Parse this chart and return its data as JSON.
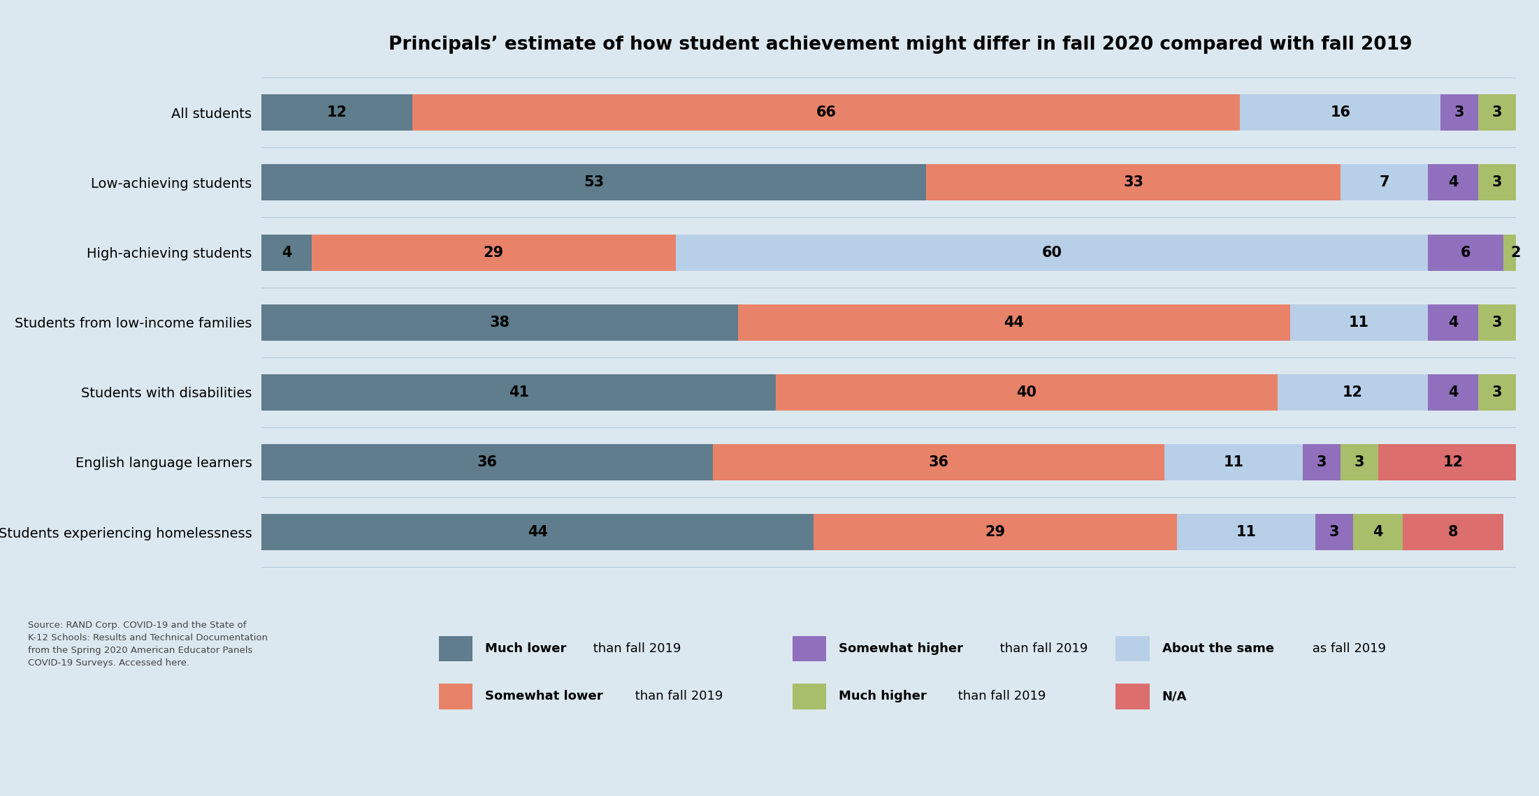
{
  "title": "Principals’ estimate of how student achievement might differ in fall 2020 compared with fall 2019",
  "categories": [
    "All students",
    "Low-achieving students",
    "High-achieving students",
    "Students from low-income families",
    "Students with disabilities",
    "English language learners",
    "Students experiencing homelessness"
  ],
  "segments": {
    "much_lower": [
      12,
      53,
      4,
      38,
      41,
      36,
      44
    ],
    "somewhat_lower": [
      66,
      33,
      29,
      44,
      40,
      36,
      29
    ],
    "about_same": [
      16,
      7,
      60,
      11,
      12,
      11,
      11
    ],
    "somewhat_higher": [
      3,
      4,
      6,
      4,
      4,
      3,
      3
    ],
    "much_higher": [
      3,
      3,
      2,
      3,
      3,
      3,
      4
    ],
    "na": [
      0,
      0,
      0,
      0,
      0,
      12,
      8
    ]
  },
  "colors": {
    "much_lower": "#5f7d8c",
    "somewhat_lower": "#e8836a",
    "about_same": "#b8cfe8",
    "somewhat_higher": "#9070bc",
    "much_higher": "#a8be6a",
    "na": "#dc6e6e"
  },
  "legend_labels": {
    "much_lower": "Much lower",
    "somewhat_lower": "Somewhat lower",
    "about_same": "About the same",
    "somewhat_higher": "Somewhat higher",
    "much_higher": "Much higher",
    "na": "N/A"
  },
  "legend_suffix": {
    "much_lower": " than fall 2019",
    "somewhat_lower": " than fall 2019",
    "about_same": " as fall 2019",
    "somewhat_higher": " than fall 2019",
    "much_higher": " than fall 2019",
    "na": ""
  },
  "background_color": "#dce8f0",
  "title_fontsize": 19,
  "label_fontsize": 15,
  "tick_fontsize": 14,
  "legend_fontsize": 13,
  "source_text": "Source: RAND Corp. COVID-19 and the State of\nK-12 Schools: Results and Technical Documentation\nfrom the Spring 2020 American Educator Panels\nCOVID-19 Surveys. Accessed here."
}
